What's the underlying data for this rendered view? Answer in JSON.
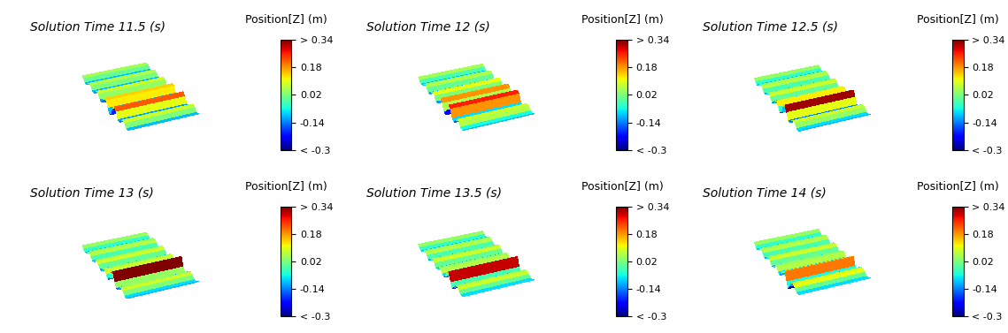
{
  "chart_data": [
    {
      "type": "surface",
      "title": "Solution Time 11.5 (s)",
      "colorbar_label": "Position[Z] (m)",
      "tick_labels": false,
      "values": [
        0.05,
        0.0,
        -0.1,
        -0.1,
        0.0,
        0.06,
        0.02,
        -0.1,
        -0.12,
        0.0,
        0.08,
        0.04,
        -0.12,
        -0.15,
        0.02,
        0.14,
        0.12,
        -0.1,
        -0.28,
        -0.2,
        0.1,
        0.22,
        0.1,
        -0.12,
        -0.14,
        0.0,
        0.08,
        0.02,
        -0.1,
        -0.08
      ],
      "colorbar_lim": [
        -0.3,
        0.34
      ],
      "colorbar_ticks": [
        {
          "value": -0.3,
          "label": "< -0.3"
        },
        -0.14,
        0.02,
        0.18,
        {
          "value": 0.34,
          "label": "> 0.34"
        }
      ]
    },
    {
      "type": "surface",
      "title": "Solution Time 12 (s)",
      "colorbar_label": "Position[Z] (m)",
      "tick_labels": false,
      "values": [
        0.05,
        -0.02,
        -0.1,
        -0.08,
        0.02,
        0.06,
        0.0,
        -0.12,
        -0.1,
        0.02,
        0.1,
        0.02,
        -0.14,
        -0.12,
        0.06,
        0.18,
        0.06,
        -0.2,
        -0.22,
        0.04,
        0.26,
        0.18,
        -0.08,
        -0.16,
        -0.04,
        0.08,
        0.06,
        -0.06,
        -0.1,
        -0.02
      ],
      "colorbar_lim": [
        -0.3,
        0.34
      ],
      "colorbar_ticks": [
        {
          "value": -0.3,
          "label": "< -0.3"
        },
        -0.14,
        0.02,
        0.18,
        {
          "value": 0.34,
          "label": "> 0.34"
        }
      ]
    },
    {
      "type": "surface",
      "title": "Solution Time 12.5 (s)",
      "colorbar_label": "Position[Z] (m)",
      "tick_labels": false,
      "values": [
        0.04,
        -0.04,
        -0.1,
        -0.06,
        0.04,
        0.06,
        -0.02,
        -0.12,
        -0.08,
        0.04,
        0.08,
        0.0,
        -0.14,
        -0.1,
        0.06,
        0.12,
        -0.04,
        -0.2,
        -0.1,
        0.18,
        0.32,
        0.1,
        -0.14,
        -0.14,
        0.0,
        0.08,
        0.04,
        -0.08,
        -0.1,
        0.0
      ],
      "colorbar_lim": [
        -0.3,
        0.34
      ],
      "colorbar_ticks": [
        {
          "value": -0.3,
          "label": "< -0.3"
        },
        -0.14,
        0.02,
        0.18,
        {
          "value": 0.34,
          "label": "> 0.34"
        }
      ]
    },
    {
      "type": "surface",
      "title": "Solution Time 13 (s)",
      "colorbar_label": "Position[Z] (m)",
      "tick_labels": false,
      "values": [
        0.04,
        -0.04,
        -0.1,
        -0.06,
        0.04,
        0.06,
        -0.02,
        -0.12,
        -0.08,
        0.04,
        0.08,
        0.0,
        -0.12,
        -0.1,
        0.04,
        0.08,
        -0.06,
        -0.16,
        -0.04,
        0.24,
        0.34,
        0.04,
        -0.16,
        -0.12,
        0.02,
        0.08,
        0.02,
        -0.08,
        -0.1,
        0.0
      ],
      "colorbar_lim": [
        -0.3,
        0.34
      ],
      "colorbar_ticks": [
        {
          "value": -0.3,
          "label": "< -0.3"
        },
        -0.14,
        0.02,
        0.18,
        {
          "value": 0.34,
          "label": "> 0.34"
        }
      ]
    },
    {
      "type": "surface",
      "title": "Solution Time 13.5 (s)",
      "colorbar_label": "Position[Z] (m)",
      "tick_labels": false,
      "values": [
        0.04,
        -0.04,
        -0.1,
        -0.06,
        0.04,
        0.06,
        -0.02,
        -0.12,
        -0.08,
        0.04,
        0.08,
        0.0,
        -0.12,
        -0.08,
        0.04,
        0.06,
        -0.08,
        -0.14,
        0.0,
        0.2,
        0.3,
        -0.02,
        -0.22,
        -0.1,
        0.04,
        0.08,
        0.0,
        -0.08,
        -0.08,
        0.02
      ],
      "colorbar_lim": [
        -0.3,
        0.34
      ],
      "colorbar_ticks": [
        {
          "value": -0.3,
          "label": "< -0.3"
        },
        -0.14,
        0.02,
        0.18,
        {
          "value": 0.34,
          "label": "> 0.34"
        }
      ]
    },
    {
      "type": "surface",
      "title": "Solution Time 14 (s)",
      "colorbar_label": "Position[Z] (m)",
      "tick_labels": false,
      "values": [
        0.04,
        -0.04,
        -0.1,
        -0.06,
        0.04,
        0.06,
        -0.02,
        -0.12,
        -0.08,
        0.04,
        0.08,
        0.0,
        -0.12,
        -0.08,
        0.04,
        0.06,
        -0.08,
        -0.12,
        0.02,
        0.14,
        0.2,
        -0.06,
        -0.28,
        -0.12,
        0.06,
        0.1,
        0.0,
        -0.08,
        -0.08,
        0.02
      ],
      "colorbar_lim": [
        -0.3,
        0.34
      ],
      "colorbar_ticks": [
        {
          "value": -0.3,
          "label": "< -0.3"
        },
        -0.14,
        0.02,
        0.18,
        {
          "value": 0.34,
          "label": "> 0.34"
        }
      ]
    }
  ]
}
